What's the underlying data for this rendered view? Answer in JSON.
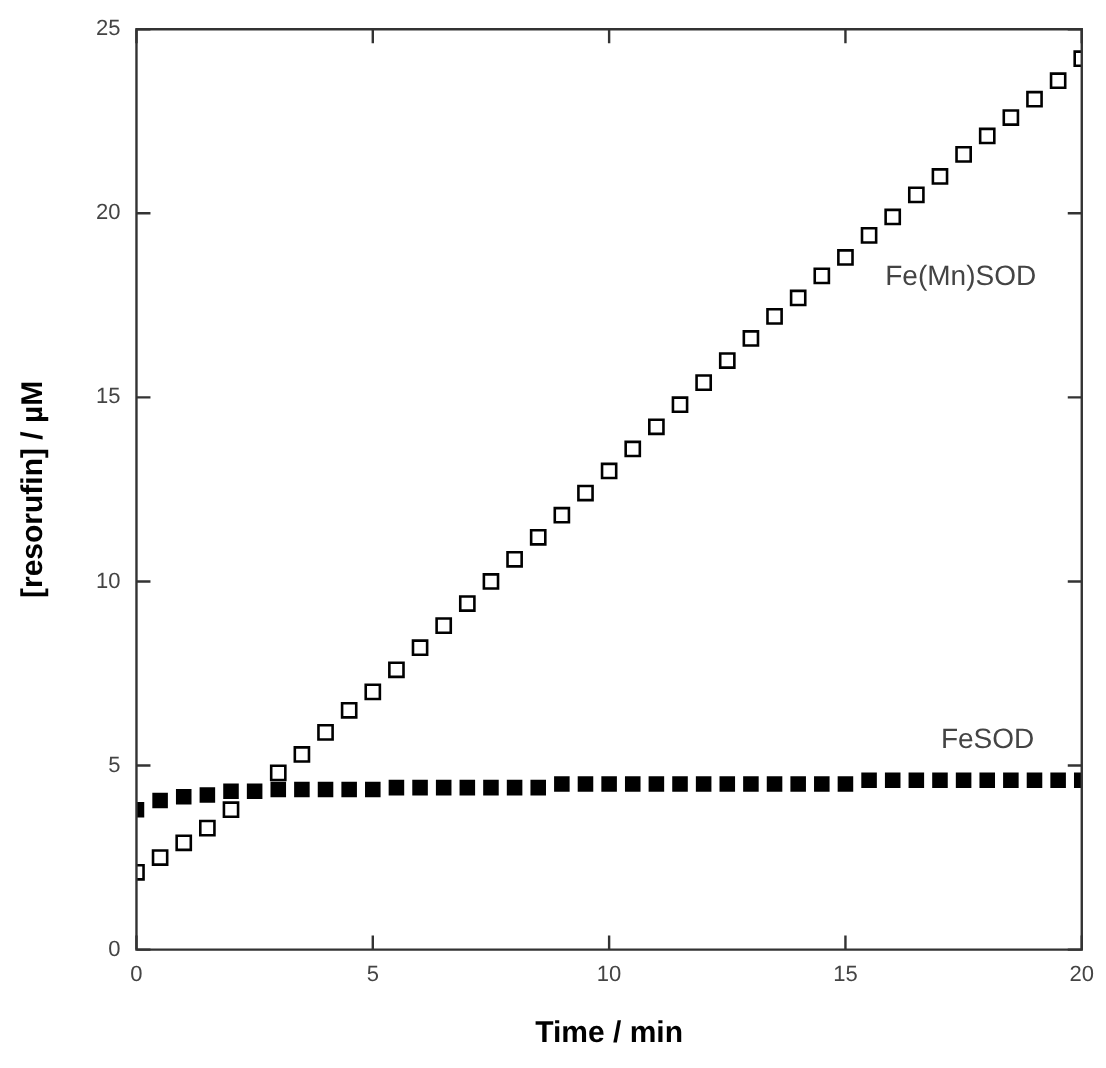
{
  "chart_data": {
    "type": "scatter",
    "xlabel": "Time / min",
    "ylabel": "[resorufin] / µM",
    "x": [
      0,
      0.5,
      1,
      1.5,
      2,
      2.5,
      3,
      3.5,
      4,
      4.5,
      5,
      5.5,
      6,
      6.5,
      7,
      7.5,
      8,
      8.5,
      9,
      9.5,
      10,
      10.5,
      11,
      11.5,
      12,
      12.5,
      13,
      13.5,
      14,
      14.5,
      15,
      15.5,
      16,
      16.5,
      17,
      17.5,
      18,
      18.5,
      19,
      19.5,
      20
    ],
    "series": [
      {
        "name": "Fe(Mn)SOD",
        "color": "#000000",
        "values": [
          2.1,
          2.5,
          2.9,
          3.3,
          3.8,
          null,
          4.8,
          5.3,
          5.9,
          6.5,
          7.0,
          7.6,
          8.2,
          8.8,
          9.4,
          10.0,
          10.6,
          11.2,
          11.8,
          12.4,
          13.0,
          13.6,
          14.2,
          14.8,
          15.4,
          16.0,
          16.6,
          17.2,
          17.7,
          18.3,
          18.8,
          19.4,
          19.9,
          20.5,
          21.0,
          21.6,
          22.1,
          22.6,
          23.1,
          23.6,
          24.2
        ]
      },
      {
        "name": "FeSOD",
        "color": "#000000",
        "values": [
          3.8,
          4.05,
          4.15,
          4.2,
          4.3,
          4.3,
          4.35,
          4.35,
          4.35,
          4.35,
          4.35,
          4.4,
          4.4,
          4.4,
          4.4,
          4.4,
          4.4,
          4.4,
          4.5,
          4.5,
          4.5,
          4.5,
          4.5,
          4.5,
          4.5,
          4.5,
          4.5,
          4.5,
          4.5,
          4.5,
          4.5,
          4.6,
          4.6,
          4.6,
          4.6,
          4.6,
          4.6,
          4.6,
          4.6,
          4.6,
          4.6
        ]
      }
    ],
    "xlim": [
      0,
      20
    ],
    "xticks": [
      0,
      5,
      10,
      15,
      20
    ],
    "ylim": [
      0,
      25
    ],
    "yticks": [
      0,
      5,
      10,
      15,
      20,
      25
    ],
    "grid": false,
    "legend": false,
    "marker": "square"
  }
}
